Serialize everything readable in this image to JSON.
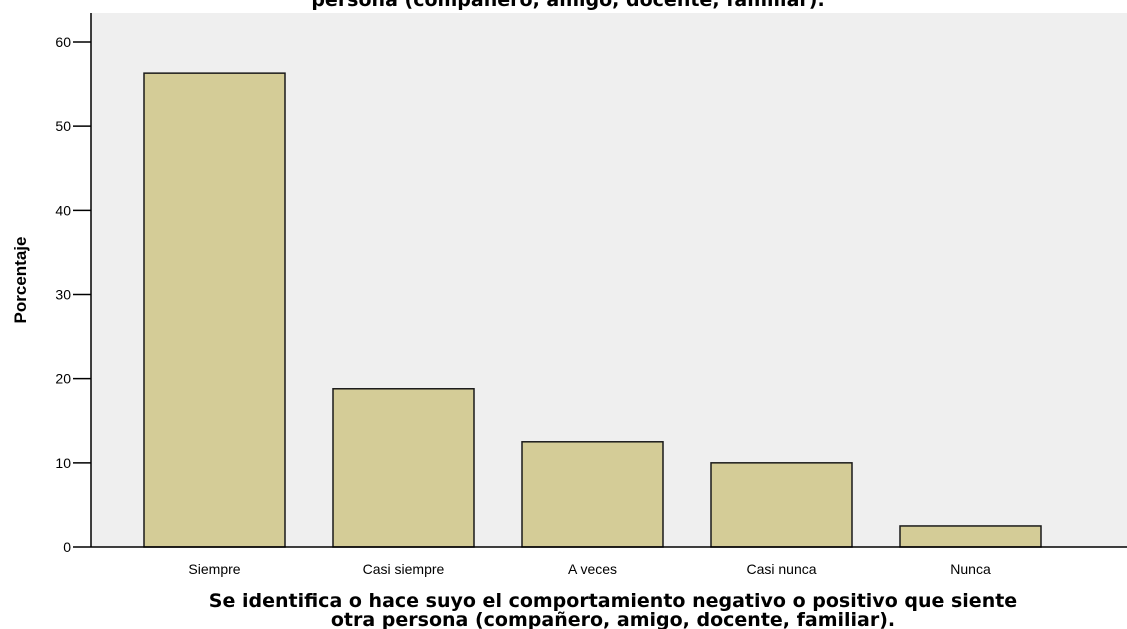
{
  "chart_data": {
    "type": "bar",
    "title": "persona (compañero, amigo, docente, familiar).",
    "xlabel_lines": [
      "Se identifica o hace suyo el comportamiento negativo o positivo que siente",
      "otra persona (compañero, amigo, docente, familiar)."
    ],
    "ylabel": "Porcentaje",
    "categories": [
      "Siempre",
      "Casi siempre",
      "A veces",
      "Casi nunca",
      "Nunca"
    ],
    "values": [
      56.3,
      18.8,
      12.5,
      10.0,
      2.5
    ],
    "ylim": [
      0,
      60
    ],
    "yticks": [
      0,
      10,
      20,
      30,
      40,
      50,
      60
    ],
    "grid": false,
    "legend": "none",
    "colors": {
      "bar_fill": "#d4cc97",
      "bar_stroke": "#1a1a1a",
      "plot_background": "#efefef",
      "axis": "#000000"
    }
  }
}
